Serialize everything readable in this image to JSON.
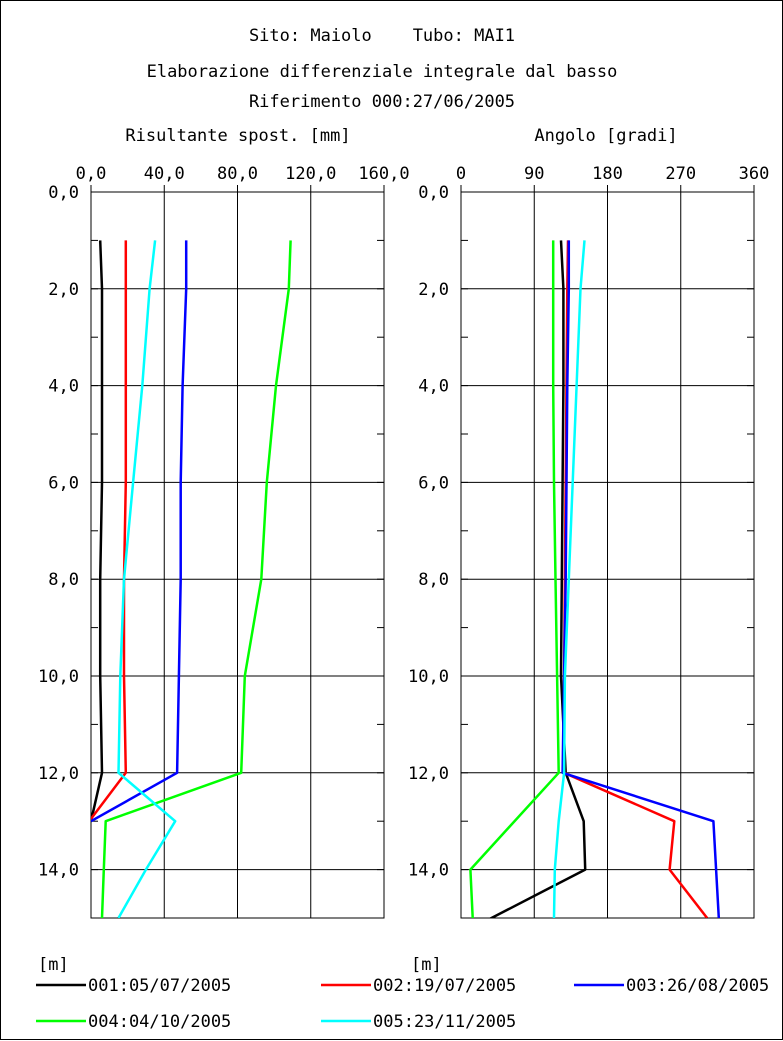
{
  "header": {
    "site_line": "Sito: Maiolo    Tubo: MAI1",
    "title": "Elaborazione differenziale integrale dal basso",
    "reference": "Riferimento  000:27/06/2005"
  },
  "chart_data": [
    {
      "type": "line",
      "title": "Risultante spost. [mm]",
      "xlabel": "Risultante spost. [mm]",
      "ylabel": "[m]",
      "xlim": [
        0,
        160
      ],
      "ylim": [
        0,
        15
      ],
      "x_ticks": [
        "0,0",
        "40,0",
        "80,0",
        "120,0",
        "160,0"
      ],
      "y_ticks": [
        "0,0",
        "2,0",
        "4,0",
        "6,0",
        "8,0",
        "10,0",
        "12,0",
        "14,0"
      ],
      "grid": true,
      "y_inverted": true,
      "series": [
        {
          "name": "001:05/07/2005",
          "color": "#000000",
          "points": [
            [
              5,
              1
            ],
            [
              6,
              2
            ],
            [
              6,
              4
            ],
            [
              6,
              6
            ],
            [
              5,
              8
            ],
            [
              5,
              10
            ],
            [
              6,
              12
            ],
            [
              0,
              13
            ]
          ]
        },
        {
          "name": "002:19/07/2005",
          "color": "#ff0000",
          "points": [
            [
              19,
              1
            ],
            [
              19,
              2
            ],
            [
              19,
              4
            ],
            [
              19,
              6
            ],
            [
              18,
              8
            ],
            [
              18,
              10
            ],
            [
              19,
              12
            ],
            [
              -1,
              13
            ]
          ]
        },
        {
          "name": "003:26/08/2005",
          "color": "#0000ff",
          "points": [
            [
              52,
              1
            ],
            [
              52,
              2
            ],
            [
              50,
              4
            ],
            [
              49,
              6
            ],
            [
              49,
              8
            ],
            [
              48,
              10
            ],
            [
              47,
              12
            ],
            [
              0,
              13
            ]
          ]
        },
        {
          "name": "004:04/10/2005",
          "color": "#00ff00",
          "points": [
            [
              109,
              1
            ],
            [
              108,
              2
            ],
            [
              101,
              4
            ],
            [
              96,
              6
            ],
            [
              93,
              8
            ],
            [
              84,
              10
            ],
            [
              82,
              12
            ],
            [
              8,
              13
            ],
            [
              7,
              14
            ],
            [
              6,
              15
            ]
          ]
        },
        {
          "name": "005:23/11/2005",
          "color": "#00ffff",
          "points": [
            [
              35,
              1
            ],
            [
              32,
              2
            ],
            [
              28,
              4
            ],
            [
              23,
              6
            ],
            [
              18,
              8
            ],
            [
              16,
              10
            ],
            [
              15,
              12
            ],
            [
              46,
              13
            ],
            [
              30,
              14
            ],
            [
              15,
              15
            ]
          ]
        }
      ]
    },
    {
      "type": "line",
      "title": "Angolo [gradi]",
      "xlabel": "Angolo [gradi]",
      "ylabel": "[m]",
      "xlim": [
        -15,
        360
      ],
      "ylim": [
        0,
        15
      ],
      "x_ticks": [
        "0",
        "90",
        "180",
        "270",
        "360"
      ],
      "y_ticks": [
        "0,0",
        "2,0",
        "4,0",
        "6,0",
        "8,0",
        "10,0",
        "12,0",
        "14,0"
      ],
      "grid": true,
      "y_inverted": true,
      "series": [
        {
          "name": "001:05/07/2005",
          "color": "#000000",
          "points": [
            [
              113,
              1
            ],
            [
              116,
              2
            ],
            [
              116,
              4
            ],
            [
              115,
              6
            ],
            [
              114,
              8
            ],
            [
              113,
              10
            ],
            [
              119,
              12
            ],
            [
              142,
              13
            ],
            [
              144,
              14
            ],
            [
              0,
              15.2
            ]
          ]
        },
        {
          "name": "002:19/07/2005",
          "color": "#ff0000",
          "points": [
            [
              122,
              1
            ],
            [
              121,
              2
            ],
            [
              120,
              4
            ],
            [
              119,
              6
            ],
            [
              118,
              8
            ],
            [
              117,
              10
            ],
            [
              117,
              12
            ],
            [
              258,
              13
            ],
            [
              252,
              14
            ],
            [
              300,
              15
            ]
          ]
        },
        {
          "name": "003:26/08/2005",
          "color": "#0000ff",
          "points": [
            [
              123,
              1
            ],
            [
              123,
              2
            ],
            [
              121,
              4
            ],
            [
              120,
              6
            ],
            [
              119,
              8
            ],
            [
              117,
              10
            ],
            [
              115,
              12
            ],
            [
              308,
              13
            ],
            [
              315,
              15
            ]
          ]
        },
        {
          "name": "004:04/10/2005",
          "color": "#00ff00",
          "points": [
            [
              103,
              1
            ],
            [
              103,
              2
            ],
            [
              103,
              4
            ],
            [
              104,
              6
            ],
            [
              106,
              8
            ],
            [
              108,
              10
            ],
            [
              110,
              12
            ],
            [
              -3,
              14
            ],
            [
              0,
              15
            ]
          ]
        },
        {
          "name": "005:23/11/2005",
          "color": "#00ffff",
          "points": [
            [
              143,
              1
            ],
            [
              138,
              2
            ],
            [
              133,
              4
            ],
            [
              128,
              6
            ],
            [
              123,
              8
            ],
            [
              118,
              10
            ],
            [
              117,
              12
            ],
            [
              110,
              13
            ],
            [
              105,
              14
            ],
            [
              104,
              15
            ]
          ]
        }
      ]
    }
  ]
}
